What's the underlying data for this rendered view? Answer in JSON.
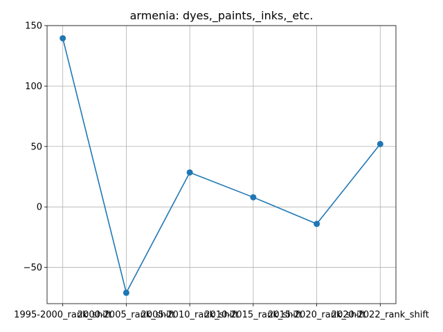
{
  "chart_data": {
    "type": "line",
    "title": "armenia: dyes,_paints,_inks,_etc.",
    "xlabel": "",
    "ylabel": "",
    "categories": [
      "1995-2000_rank_shift",
      "2000-2005_rank_shift",
      "2005-2010_rank_shift",
      "2010-2015_rank_shift",
      "2015-2020_rank_shift",
      "2020-2022_rank_shift"
    ],
    "series": [
      {
        "values": [
          139.5,
          -71,
          28.5,
          8,
          -14,
          52
        ]
      }
    ],
    "ylim": [
      -80,
      150
    ],
    "yticks": [
      -50,
      0,
      50,
      100,
      150
    ],
    "ytick_labels": [
      "−50",
      "0",
      "50",
      "100",
      "150"
    ],
    "grid": true,
    "marker": "circle",
    "line_color": "#1f77b4"
  }
}
